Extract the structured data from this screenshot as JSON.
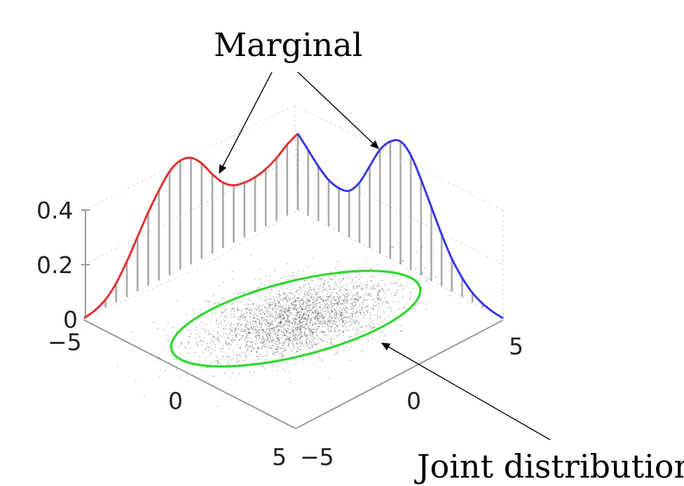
{
  "annotations": {
    "marginal_label": "Marginal",
    "joint_label": "Joint distribution"
  },
  "chart_data": {
    "type": "line",
    "xlim": [
      -5,
      5
    ],
    "ylim": [
      -5,
      5
    ],
    "zlim": [
      0,
      0.4
    ],
    "z_ticks": [
      "0",
      "0.2",
      "0.4"
    ],
    "x_ticks": [
      "−5",
      "0",
      "5"
    ],
    "y_ticks": [
      "−5",
      "0",
      "5"
    ],
    "grid": true,
    "series": [
      {
        "color": "#e03030",
        "x": [
          -5,
          -4.5,
          -4,
          -3.5,
          -3,
          -2.5,
          -2,
          -1.5,
          -1,
          -0.5,
          0,
          0.5,
          1,
          1.5,
          2,
          2.5,
          3,
          3.5,
          4,
          4.5,
          5
        ],
        "values": [
          0.002,
          0.01,
          0.03,
          0.07,
          0.13,
          0.2,
          0.27,
          0.33,
          0.38,
          0.4,
          0.39,
          0.35,
          0.29,
          0.24,
          0.21,
          0.2,
          0.2,
          0.21,
          0.23,
          0.26,
          0.28
        ]
      },
      {
        "color": "#3838e0",
        "x": [
          -5,
          -4.5,
          -4,
          -3.5,
          -3,
          -2.5,
          -2,
          -1.5,
          -1,
          -0.5,
          0,
          0.5,
          1,
          1.5,
          2,
          2.5,
          3,
          3.5,
          4,
          4.5,
          5
        ],
        "values": [
          0.28,
          0.24,
          0.2,
          0.17,
          0.16,
          0.17,
          0.22,
          0.3,
          0.38,
          0.43,
          0.45,
          0.42,
          0.35,
          0.27,
          0.19,
          0.12,
          0.07,
          0.035,
          0.015,
          0.005,
          0.001
        ]
      }
    ],
    "joint": {
      "color": "#2ed82e",
      "center": [
        0,
        0
      ],
      "contour_rx": 4.5,
      "contour_ry": 2.1,
      "rotation_deg": 35
    }
  }
}
